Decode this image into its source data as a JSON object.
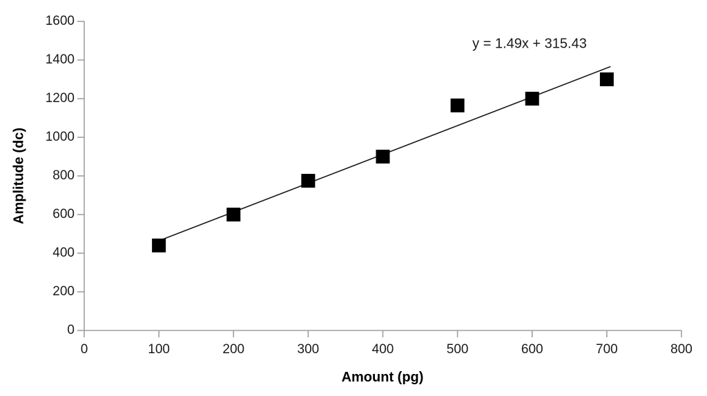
{
  "chart_data": {
    "type": "scatter",
    "title": "",
    "xlabel": "Amount (pg)",
    "ylabel": "Amplitude (dc)",
    "annotation": "y = 1.49x + 315.43",
    "x": [
      100,
      200,
      300,
      400,
      500,
      600,
      700
    ],
    "y": [
      440,
      600,
      775,
      900,
      1165,
      1200,
      1300
    ],
    "xlim": [
      0,
      800
    ],
    "ylim": [
      0,
      1600
    ],
    "xticks": [
      0,
      100,
      200,
      300,
      400,
      500,
      600,
      700,
      800
    ],
    "yticks": [
      0,
      200,
      400,
      600,
      800,
      1000,
      1200,
      1400,
      1600
    ],
    "trendline": {
      "slope": 1.49,
      "intercept": 315.43,
      "x_start": 100,
      "x_end": 705
    },
    "grid": false,
    "legend_position": "none",
    "marker": {
      "shape": "square",
      "color": "#000000",
      "size": 20
    },
    "line_color": "#1a1a1a",
    "axis_color": "#9e9e9e",
    "text_color": "#1a1a1a",
    "background_color": "#ffffff"
  }
}
